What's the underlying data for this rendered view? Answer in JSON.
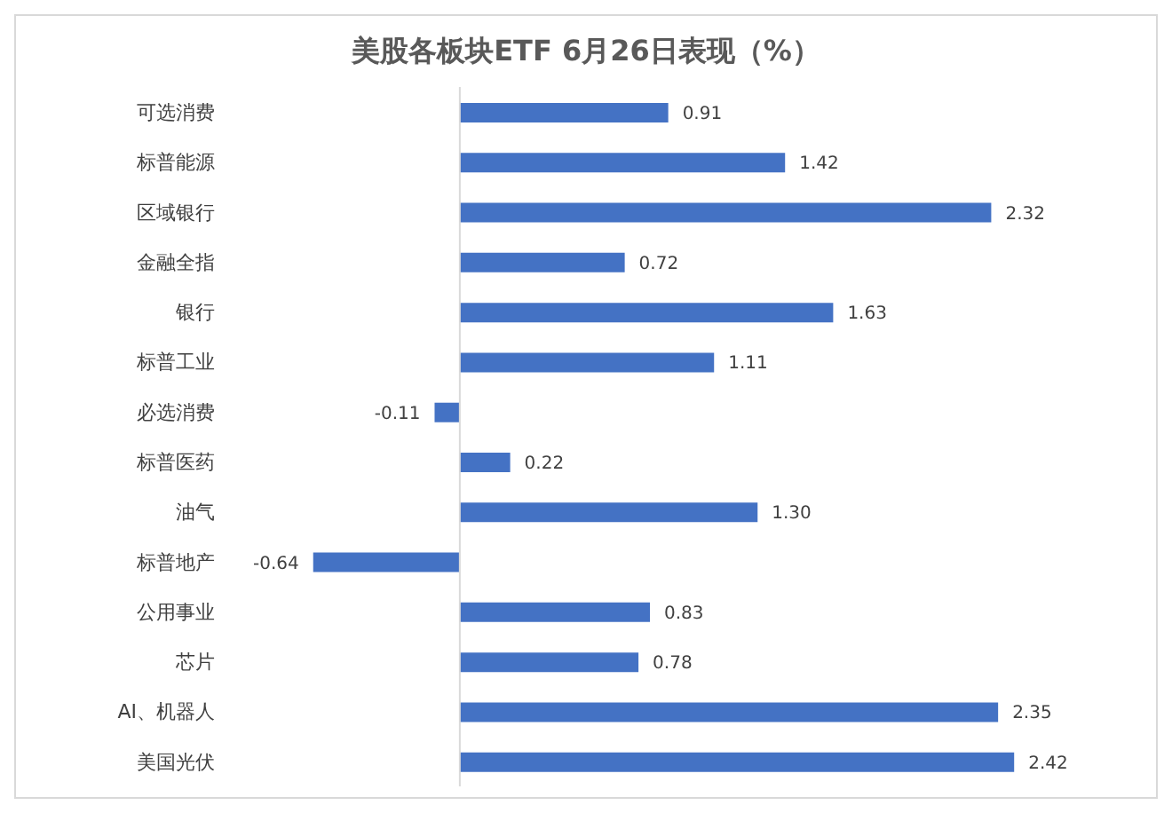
{
  "chart_data": {
    "type": "bar",
    "orientation": "horizontal",
    "title": "美股各板块ETF  6月26日表现（%）",
    "categories": [
      "可选消费",
      "标普能源",
      "区域银行",
      "金融全指",
      "银行",
      "标普工业",
      "必选消费",
      "标普医药",
      "油气",
      "标普地产",
      "公用事业",
      "芯片",
      "AI、机器人",
      "美国光伏"
    ],
    "values": [
      0.91,
      1.42,
      2.32,
      0.72,
      1.63,
      1.11,
      -0.11,
      0.22,
      1.3,
      -0.64,
      0.83,
      0.78,
      2.35,
      2.42
    ],
    "value_labels": [
      "0.91",
      "1.42",
      "2.32",
      "0.72",
      "1.63",
      "1.11",
      "-0.11",
      "0.22",
      "1.30",
      "-0.64",
      "0.83",
      "0.78",
      "2.35",
      "2.42"
    ],
    "color": "#4472c4",
    "grid": false,
    "legend": false
  }
}
